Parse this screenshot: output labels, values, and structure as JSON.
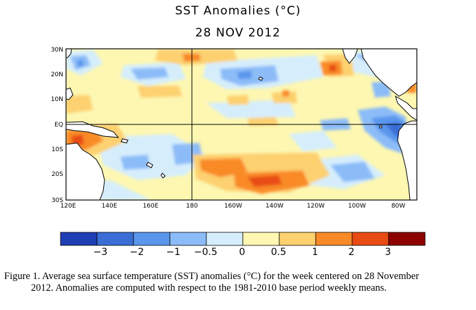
{
  "map": {
    "title": "SST Anomalies (°C)",
    "date": "28 NOV 2012",
    "lat_labels": [
      "30N",
      "20N",
      "10N",
      "EQ",
      "10S",
      "20S",
      "30S"
    ],
    "lon_labels": [
      "120E",
      "140E",
      "160E",
      "180",
      "160W",
      "140W",
      "120W",
      "100W",
      "80W"
    ],
    "region": "Tropical Pacific Ocean, 30S–30N, 120E–70W",
    "colorbar": {
      "tick_labels": [
        "−3",
        "−2",
        "−1",
        "−0.5",
        "0",
        "0.5",
        "1",
        "2",
        "3"
      ],
      "colors": [
        "#1e3fb4",
        "#3a6ed6",
        "#5a96ec",
        "#8cbcf8",
        "#d6eefc",
        "#fdf7b2",
        "#fdd070",
        "#f98a28",
        "#e84b14",
        "#8c0000"
      ]
    },
    "features": {
      "land_color": "#ffffff",
      "land_outline": "#000000",
      "gridlines": [
        "equator",
        "180 meridian"
      ]
    }
  },
  "caption": {
    "line1": "Figure 1. Average sea surface temperature (SST) anomalies (°C) for the week centered on 28 November",
    "line2": "2012.   Anomalies are computed with respect to the 1981-2010 base period weekly means."
  }
}
